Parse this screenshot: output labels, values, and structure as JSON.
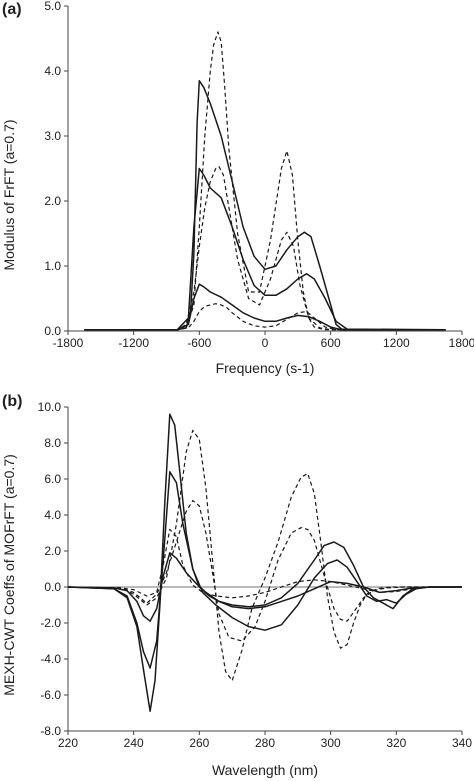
{
  "chart_data": [
    {
      "panel_label": "(a)",
      "type": "line",
      "xlabel": "Frequency (s-1)",
      "ylabel": "Modulus of FrFT (a=0.7)",
      "xlim": [
        -1800,
        1800
      ],
      "ylim": [
        0,
        5.0
      ],
      "xticks": [
        -1800,
        -1200,
        -600,
        0,
        600,
        1200,
        1800
      ],
      "xtick_labels": [
        "-1800",
        "-1200",
        "-600",
        "0",
        "600",
        "1200",
        "1800"
      ],
      "yticks": [
        0,
        1,
        2,
        3,
        4,
        5
      ],
      "ytick_labels": [
        "0.0",
        "1.0",
        "2.0",
        "3.0",
        "4.0",
        "5.0"
      ],
      "grid": false,
      "colors": {
        "line": "#1a1a1a",
        "axis": "#444444"
      },
      "series": [
        {
          "style": "solid",
          "x": [
            -1650,
            -800,
            -720,
            -680,
            -650,
            -620,
            -600,
            -560,
            -500,
            -400,
            -300,
            -200,
            -100,
            0,
            100,
            200,
            300,
            360,
            420,
            500,
            600,
            650,
            700,
            800,
            1650
          ],
          "y": [
            0.02,
            0.02,
            0.05,
            0.3,
            1.2,
            3.2,
            3.85,
            3.75,
            3.5,
            3.0,
            2.3,
            1.6,
            1.15,
            0.95,
            1.0,
            1.25,
            1.45,
            1.52,
            1.45,
            1.0,
            0.4,
            0.1,
            0.03,
            0.02,
            0.02
          ]
        },
        {
          "style": "solid",
          "x": [
            -1650,
            -800,
            -700,
            -650,
            -600,
            -560,
            -500,
            -400,
            -300,
            -200,
            -100,
            0,
            100,
            200,
            300,
            380,
            450,
            550,
            650,
            750,
            1650
          ],
          "y": [
            0.02,
            0.02,
            0.2,
            1.6,
            2.5,
            2.4,
            2.2,
            2.05,
            1.6,
            1.1,
            0.7,
            0.55,
            0.55,
            0.65,
            0.8,
            0.88,
            0.8,
            0.5,
            0.15,
            0.03,
            0.02
          ]
        },
        {
          "style": "solid",
          "x": [
            -1650,
            -800,
            -700,
            -650,
            -600,
            -560,
            -500,
            -400,
            -300,
            -200,
            -100,
            0,
            100,
            200,
            300,
            400,
            500,
            600,
            700,
            1650
          ],
          "y": [
            0.02,
            0.02,
            0.1,
            0.5,
            0.72,
            0.68,
            0.6,
            0.52,
            0.4,
            0.28,
            0.2,
            0.15,
            0.15,
            0.2,
            0.24,
            0.22,
            0.15,
            0.06,
            0.02,
            0.02
          ]
        },
        {
          "style": "dashed",
          "x": [
            -1650,
            -800,
            -720,
            -650,
            -600,
            -550,
            -500,
            -470,
            -430,
            -400,
            -370,
            -330,
            -250,
            -150,
            -50,
            50,
            150,
            200,
            250,
            300,
            350,
            400,
            450,
            550,
            650,
            1650
          ],
          "y": [
            0.02,
            0.02,
            0.05,
            0.4,
            1.6,
            3.0,
            4.0,
            4.4,
            4.6,
            4.45,
            3.8,
            2.8,
            1.5,
            0.6,
            0.6,
            1.4,
            2.5,
            2.77,
            2.4,
            1.4,
            0.6,
            0.2,
            0.06,
            0.02,
            0.02,
            0.02
          ]
        },
        {
          "style": "dashed",
          "x": [
            -1650,
            -800,
            -720,
            -650,
            -600,
            -550,
            -500,
            -450,
            -420,
            -380,
            -330,
            -250,
            -150,
            -50,
            50,
            150,
            200,
            260,
            320,
            400,
            500,
            600,
            1650
          ],
          "y": [
            0.02,
            0.02,
            0.1,
            0.6,
            1.3,
            1.9,
            2.3,
            2.5,
            2.53,
            2.4,
            1.9,
            1.1,
            0.5,
            0.4,
            0.8,
            1.4,
            1.52,
            1.3,
            0.7,
            0.2,
            0.05,
            0.02,
            0.02
          ]
        },
        {
          "style": "dashed",
          "x": [
            -1650,
            -800,
            -700,
            -650,
            -600,
            -550,
            -500,
            -450,
            -400,
            -350,
            -300,
            -200,
            -100,
            0,
            100,
            200,
            300,
            380,
            450,
            550,
            650,
            1650
          ],
          "y": [
            0.02,
            0.02,
            0.05,
            0.15,
            0.3,
            0.38,
            0.4,
            0.42,
            0.4,
            0.36,
            0.28,
            0.15,
            0.08,
            0.06,
            0.08,
            0.18,
            0.28,
            0.3,
            0.2,
            0.06,
            0.02,
            0.02
          ]
        }
      ]
    },
    {
      "panel_label": "(b)",
      "type": "line",
      "xlabel": "Wavelength (nm)",
      "ylabel": "MEXH-CWT Coeffs of MOFrFT (a=0.7)",
      "xlim": [
        220,
        340
      ],
      "ylim": [
        -8.0,
        10.0
      ],
      "xticks": [
        220,
        240,
        260,
        280,
        300,
        320,
        340
      ],
      "xtick_labels": [
        "220",
        "240",
        "260",
        "280",
        "300",
        "320",
        "340"
      ],
      "yticks": [
        -8,
        -6,
        -4,
        -2,
        0,
        2,
        4,
        6,
        8,
        10
      ],
      "ytick_labels": [
        "-8.0",
        "-6.0",
        "-4.0",
        "-2.0",
        "0.0",
        "2.0",
        "4.0",
        "6.0",
        "8.0",
        "10.0"
      ],
      "grid": false,
      "colors": {
        "line": "#1a1a1a",
        "axis": "#444444"
      },
      "series": [
        {
          "style": "solid",
          "x": [
            220,
            234,
            238,
            241,
            243,
            245,
            246.5,
            248,
            249.5,
            251,
            252.5,
            254,
            256,
            258,
            260,
            263,
            266,
            270,
            275,
            280,
            285,
            290,
            295,
            298,
            301,
            304,
            307,
            310,
            313,
            316,
            319,
            322,
            325,
            330,
            340
          ],
          "y": [
            0,
            -0.1,
            -0.6,
            -2.2,
            -4.6,
            -6.9,
            -5.2,
            -1.0,
            4.8,
            9.6,
            9.0,
            6.5,
            3.0,
            1.0,
            0.0,
            -0.5,
            -0.8,
            -1.0,
            -1.1,
            -1.0,
            -0.6,
            0.2,
            1.5,
            2.3,
            2.5,
            2.2,
            1.2,
            0.0,
            -0.6,
            -0.9,
            -1.2,
            -0.5,
            -0.1,
            0,
            0
          ]
        },
        {
          "style": "solid",
          "x": [
            220,
            234,
            238,
            241,
            243,
            245,
            247,
            249,
            251,
            253,
            255,
            258,
            261,
            265,
            270,
            275,
            280,
            285,
            290,
            295,
            299,
            302,
            305,
            308,
            311,
            314,
            317,
            320,
            323,
            326,
            330,
            340
          ],
          "y": [
            0,
            -0.1,
            -0.5,
            -2.0,
            -3.6,
            -4.5,
            -3.0,
            1.5,
            6.4,
            5.8,
            3.5,
            1.0,
            -0.3,
            -1.0,
            -1.7,
            -2.2,
            -2.4,
            -2.1,
            -1.0,
            0.5,
            1.3,
            1.5,
            1.1,
            0.3,
            -0.5,
            -0.8,
            -0.7,
            -0.9,
            -0.4,
            -0.1,
            0,
            0
          ]
        },
        {
          "style": "solid",
          "x": [
            220,
            234,
            238,
            241,
            243,
            245,
            247,
            249,
            251,
            253,
            256,
            259,
            262,
            266,
            270,
            275,
            280,
            285,
            290,
            295,
            300,
            305,
            310,
            315,
            320,
            325,
            330,
            340
          ],
          "y": [
            0,
            -0.05,
            -0.2,
            -0.8,
            -1.6,
            -1.9,
            -1.2,
            0.6,
            1.9,
            1.6,
            0.8,
            0.2,
            -0.3,
            -0.8,
            -1.1,
            -1.2,
            -1.1,
            -0.8,
            -0.5,
            -0.1,
            0.3,
            0.2,
            0.0,
            -0.3,
            -0.2,
            -0.05,
            0,
            0
          ]
        },
        {
          "style": "dashed",
          "x": [
            220,
            236,
            240,
            244,
            247,
            250,
            253,
            256,
            258,
            260,
            262,
            264,
            266,
            268,
            270,
            273,
            276,
            280,
            284,
            288,
            291,
            293,
            295,
            297,
            299,
            301,
            303,
            305,
            307,
            309,
            311,
            314,
            318,
            322,
            330,
            340
          ],
          "y": [
            0,
            -0.05,
            -0.4,
            -1.0,
            -0.6,
            0.5,
            3.5,
            7.5,
            8.7,
            8.2,
            5.5,
            1.5,
            -2.5,
            -4.7,
            -5.2,
            -3.5,
            -1.2,
            0.5,
            2.5,
            5.0,
            6.1,
            6.3,
            5.2,
            2.5,
            -0.5,
            -2.5,
            -3.4,
            -3.2,
            -2.0,
            -1.0,
            -0.4,
            -0.1,
            0,
            0,
            0,
            0
          ]
        },
        {
          "style": "dashed",
          "x": [
            220,
            236,
            240,
            244,
            247,
            250,
            253,
            256,
            258,
            260,
            262,
            264,
            266,
            269,
            273,
            277,
            280,
            284,
            288,
            291,
            293,
            295,
            297,
            299,
            301,
            303,
            305,
            307,
            310,
            313,
            317,
            322,
            330,
            340
          ],
          "y": [
            0,
            -0.05,
            -0.3,
            -0.9,
            -0.4,
            0.8,
            2.5,
            4.2,
            4.8,
            4.5,
            3.0,
            0.8,
            -1.5,
            -2.8,
            -3.0,
            -2.2,
            -0.8,
            1.5,
            3.0,
            3.3,
            3.2,
            2.6,
            1.3,
            0.0,
            -1.2,
            -1.8,
            -1.9,
            -1.4,
            -0.6,
            -0.2,
            -0.05,
            0,
            0,
            0
          ]
        },
        {
          "style": "dashed",
          "x": [
            220,
            236,
            240,
            244,
            247,
            249,
            251,
            253,
            255,
            258,
            261,
            265,
            270,
            275,
            280,
            285,
            290,
            295,
            300,
            305,
            310,
            315,
            320,
            325,
            330,
            340
          ],
          "y": [
            0,
            -0.05,
            -0.15,
            -0.5,
            -0.3,
            1.2,
            3.2,
            2.8,
            1.2,
            0.1,
            -0.3,
            -0.5,
            -0.6,
            -0.5,
            -0.3,
            0.0,
            0.3,
            0.4,
            0.3,
            0.1,
            -0.1,
            -0.3,
            -0.25,
            -0.1,
            0,
            0
          ]
        }
      ]
    }
  ]
}
